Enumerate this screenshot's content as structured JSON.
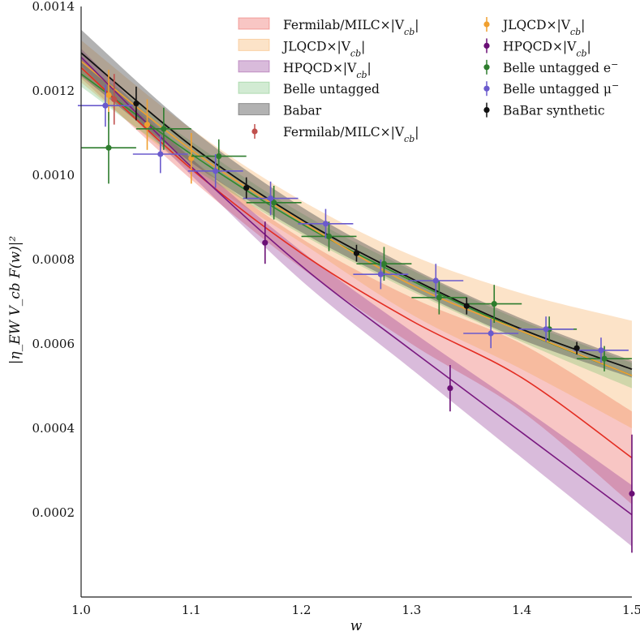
{
  "chart_data": {
    "type": "line",
    "xlabel": "w",
    "ylabel": "|η_EW V_cb F(w)|²",
    "xlim": [
      1.0,
      1.5
    ],
    "ylim": [
      0.0,
      0.0014
    ],
    "x_ticks": [
      "1.0",
      "1.1",
      "1.2",
      "1.3",
      "1.4",
      "1.5"
    ],
    "y_ticks": [
      "0.0002",
      "0.0004",
      "0.0006",
      "0.0008",
      "0.0010",
      "0.0012",
      "0.0014"
    ],
    "grid": false,
    "legend_position": "top-right",
    "bands": [
      {
        "name": "Fermilab/MILC×|V_cb|",
        "color": "#e8413c",
        "opacity": 0.3,
        "x": [
          1.0,
          1.1,
          1.2,
          1.3,
          1.4,
          1.5
        ],
        "center": [
          0.001255,
          0.001015,
          0.000815,
          0.000655,
          0.00052,
          0.00033
        ],
        "upper": [
          0.00128,
          0.00104,
          0.00085,
          0.00071,
          0.0006,
          0.00044
        ],
        "lower": [
          0.00123,
          0.00099,
          0.00078,
          0.0006,
          0.00044,
          0.00022
        ]
      },
      {
        "name": "JLQCD×|V_cb|",
        "color": "#f5a24a",
        "opacity": 0.3,
        "x": [
          1.0,
          1.1,
          1.2,
          1.3,
          1.4,
          1.5
        ],
        "center": [
          0.00127,
          0.00106,
          0.00089,
          0.00074,
          0.00063,
          0.000525
        ],
        "upper": [
          0.00132,
          0.00111,
          0.00094,
          0.00081,
          0.00072,
          0.000655
        ],
        "lower": [
          0.00122,
          0.00101,
          0.00084,
          0.00067,
          0.00054,
          0.0004
        ]
      },
      {
        "name": "HPQCD×|V_cb|",
        "color": "#8a2d8e",
        "opacity": 0.32,
        "x": [
          1.0,
          1.1,
          1.2,
          1.3,
          1.4,
          1.5
        ],
        "center": [
          0.00128,
          0.00102,
          0.000785,
          0.000585,
          0.00039,
          0.000195
        ],
        "upper": [
          0.0013,
          0.00104,
          0.00082,
          0.00063,
          0.00045,
          0.000265
        ],
        "lower": [
          0.00126,
          0.001,
          0.00075,
          0.00054,
          0.00033,
          0.00012
        ]
      },
      {
        "name": "Belle untagged",
        "color": "#4caf50",
        "opacity": 0.25,
        "x": [
          1.0,
          1.1,
          1.2,
          1.3,
          1.4,
          1.5
        ],
        "center": [
          0.00124,
          0.00105,
          0.000885,
          0.00075,
          0.00063,
          0.000525
        ],
        "upper": [
          0.00127,
          0.00108,
          0.00091,
          0.000775,
          0.000655,
          0.000555
        ],
        "lower": [
          0.00121,
          0.00102,
          0.00086,
          0.000725,
          0.000605,
          0.000495
        ]
      },
      {
        "name": "Babar",
        "color": "#555555",
        "opacity": 0.45,
        "x": [
          1.0,
          1.1,
          1.2,
          1.3,
          1.4,
          1.5
        ],
        "center": [
          0.00129,
          0.00107,
          0.000895,
          0.000755,
          0.000635,
          0.00054
        ],
        "upper": [
          0.001345,
          0.00111,
          0.000925,
          0.00078,
          0.00066,
          0.00056
        ],
        "lower": [
          0.001235,
          0.00103,
          0.000865,
          0.00073,
          0.00061,
          0.00052
        ]
      }
    ],
    "lines": [
      {
        "name": "Babar",
        "color": "#111111",
        "width": 1.8
      },
      {
        "name": "Belle untagged",
        "color": "#2e8b2e",
        "width": 1.6
      },
      {
        "name": "JLQCD×|V_cb|",
        "color": "#f0a030",
        "width": 1.6
      },
      {
        "name": "Fermilab/MILC×|V_cb|",
        "color": "#e32d22",
        "width": 1.6
      },
      {
        "name": "HPQCD×|V_cb|",
        "color": "#7a1a80",
        "width": 1.6
      }
    ],
    "points": [
      {
        "name": "Fermilab/MILC×|V_cb|",
        "color": "#c0504d",
        "data": [
          {
            "x": 1.03,
            "y": 0.00118,
            "ey": 6e-05
          }
        ]
      },
      {
        "name": "JLQCD×|V_cb|",
        "color": "#f0a030",
        "data": [
          {
            "x": 1.025,
            "y": 0.00119,
            "ey": 6e-05
          },
          {
            "x": 1.06,
            "y": 0.00112,
            "ey": 6e-05
          },
          {
            "x": 1.1,
            "y": 0.00104,
            "ey": 6e-05
          }
        ]
      },
      {
        "name": "HPQCD×|V_cb|",
        "color": "#6a0f75",
        "data": [
          {
            "x": 1.167,
            "y": 0.00084,
            "ey": 5e-05
          },
          {
            "x": 1.335,
            "y": 0.000495,
            "ey": 5.5e-05
          },
          {
            "x": 1.5,
            "y": 0.000245,
            "ey": 0.00014
          }
        ]
      },
      {
        "name": "Belle untagged e⁻",
        "color": "#2e7d2e",
        "data": [
          {
            "x": 1.025,
            "y": 0.001065,
            "ex": 0.025,
            "ey": 8.5e-05
          },
          {
            "x": 1.075,
            "y": 0.00111,
            "ex": 0.025,
            "ey": 5e-05
          },
          {
            "x": 1.125,
            "y": 0.001045,
            "ex": 0.025,
            "ey": 4e-05
          },
          {
            "x": 1.175,
            "y": 0.000935,
            "ex": 0.025,
            "ey": 4e-05
          },
          {
            "x": 1.225,
            "y": 0.000855,
            "ex": 0.025,
            "ey": 3.5e-05
          },
          {
            "x": 1.275,
            "y": 0.00079,
            "ex": 0.025,
            "ey": 4e-05
          },
          {
            "x": 1.325,
            "y": 0.00071,
            "ex": 0.025,
            "ey": 4e-05
          },
          {
            "x": 1.375,
            "y": 0.000695,
            "ex": 0.025,
            "ey": 4.5e-05
          },
          {
            "x": 1.425,
            "y": 0.000635,
            "ex": 0.025,
            "ey": 3e-05
          },
          {
            "x": 1.475,
            "y": 0.000565,
            "ex": 0.025,
            "ey": 3e-05
          }
        ]
      },
      {
        "name": "Belle untagged μ⁻",
        "color": "#6a5acd",
        "data": [
          {
            "x": 1.022,
            "y": 0.001165,
            "ex": 0.025,
            "ey": 5e-05
          },
          {
            "x": 1.072,
            "y": 0.00105,
            "ex": 0.025,
            "ey": 4.5e-05
          },
          {
            "x": 1.122,
            "y": 0.00101,
            "ex": 0.025,
            "ey": 4e-05
          },
          {
            "x": 1.172,
            "y": 0.000945,
            "ex": 0.025,
            "ey": 4e-05
          },
          {
            "x": 1.222,
            "y": 0.000885,
            "ex": 0.025,
            "ey": 3.5e-05
          },
          {
            "x": 1.272,
            "y": 0.000765,
            "ex": 0.025,
            "ey": 3.5e-05
          },
          {
            "x": 1.322,
            "y": 0.00075,
            "ex": 0.025,
            "ey": 4e-05
          },
          {
            "x": 1.372,
            "y": 0.000625,
            "ex": 0.025,
            "ey": 3.5e-05
          },
          {
            "x": 1.422,
            "y": 0.000635,
            "ex": 0.025,
            "ey": 3e-05
          },
          {
            "x": 1.472,
            "y": 0.000585,
            "ex": 0.025,
            "ey": 3e-05
          }
        ]
      },
      {
        "name": "BaBar synthetic",
        "color": "#111111",
        "data": [
          {
            "x": 1.05,
            "y": 0.00117,
            "ey": 4e-05
          },
          {
            "x": 1.15,
            "y": 0.00097,
            "ey": 2.5e-05
          },
          {
            "x": 1.25,
            "y": 0.000815,
            "ey": 2e-05
          },
          {
            "x": 1.35,
            "y": 0.00069,
            "ey": 2e-05
          },
          {
            "x": 1.45,
            "y": 0.00059,
            "ey": 1.5e-05
          }
        ]
      }
    ],
    "legend": {
      "left": [
        {
          "kind": "band",
          "color": "#e8413c",
          "opacity": 0.3,
          "parts": [
            {
              "t": "Fermilab/MILC×|V"
            },
            {
              "t": "cb",
              "sub": true
            },
            {
              "t": "|"
            }
          ]
        },
        {
          "kind": "band",
          "color": "#f5a24a",
          "opacity": 0.3,
          "parts": [
            {
              "t": "JLQCD×|V"
            },
            {
              "t": "cb",
              "sub": true
            },
            {
              "t": "|"
            }
          ]
        },
        {
          "kind": "band",
          "color": "#8a2d8e",
          "opacity": 0.32,
          "parts": [
            {
              "t": "HPQCD×|V"
            },
            {
              "t": "cb",
              "sub": true
            },
            {
              "t": "|"
            }
          ]
        },
        {
          "kind": "band",
          "color": "#4caf50",
          "opacity": 0.25,
          "parts": [
            {
              "t": "Belle untagged"
            }
          ]
        },
        {
          "kind": "band",
          "color": "#555555",
          "opacity": 0.45,
          "parts": [
            {
              "t": "Babar"
            }
          ]
        },
        {
          "kind": "point",
          "color": "#c0504d",
          "parts": [
            {
              "t": "Fermilab/MILC×|V"
            },
            {
              "t": "cb",
              "sub": true
            },
            {
              "t": "|"
            }
          ]
        }
      ],
      "right": [
        {
          "kind": "point",
          "color": "#f0a030",
          "parts": [
            {
              "t": "JLQCD×|V"
            },
            {
              "t": "cb",
              "sub": true
            },
            {
              "t": "|"
            }
          ]
        },
        {
          "kind": "point",
          "color": "#6a0f75",
          "parts": [
            {
              "t": "HPQCD×|V"
            },
            {
              "t": "cb",
              "sub": true
            },
            {
              "t": "|"
            }
          ]
        },
        {
          "kind": "point",
          "color": "#2e7d2e",
          "parts": [
            {
              "t": "Belle untagged e"
            },
            {
              "t": "−",
              "sup": true
            }
          ]
        },
        {
          "kind": "point",
          "color": "#6a5acd",
          "parts": [
            {
              "t": "Belle untagged μ"
            },
            {
              "t": "−",
              "sup": true
            }
          ]
        },
        {
          "kind": "point",
          "color": "#111111",
          "parts": [
            {
              "t": "BaBar synthetic"
            }
          ]
        }
      ]
    }
  }
}
